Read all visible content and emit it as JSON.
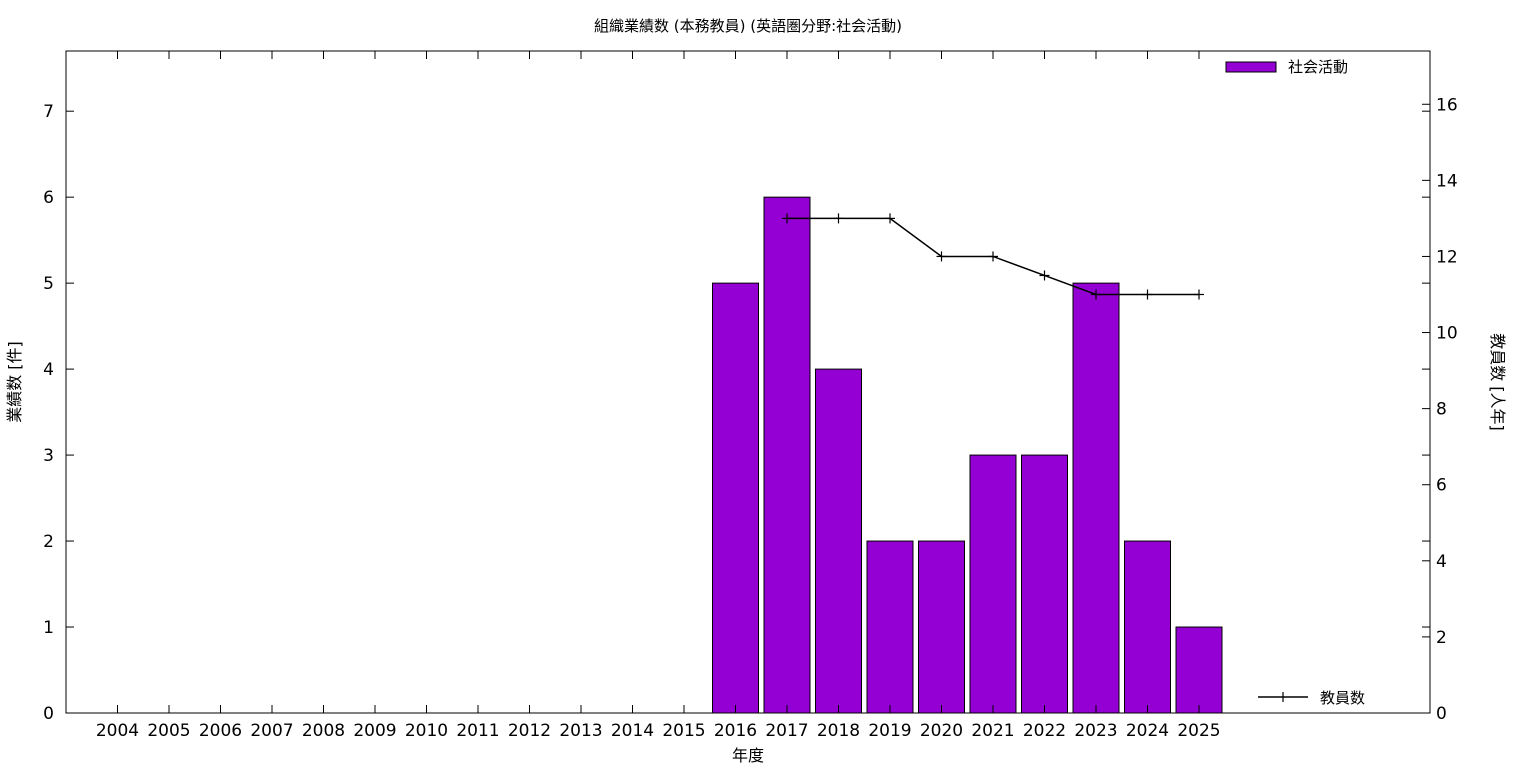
{
  "chart_data": {
    "type": "bar",
    "title": "組織業績数 (本務教員) (英語圏分野:社会活動)",
    "xlabel": "年度",
    "ylabel": "業績数 [件]",
    "y2label": "教員数 [人年]",
    "categories": [
      "2004",
      "2005",
      "2006",
      "2007",
      "2008",
      "2009",
      "2010",
      "2011",
      "2012",
      "2013",
      "2014",
      "2015",
      "2016",
      "2017",
      "2018",
      "2019",
      "2020",
      "2021",
      "2022",
      "2023",
      "2024",
      "2025"
    ],
    "series": [
      {
        "name": "社会活動",
        "type": "bar",
        "axis": "left",
        "color": "#9400d3",
        "values": [
          null,
          null,
          null,
          null,
          null,
          null,
          null,
          null,
          null,
          null,
          null,
          null,
          5,
          6,
          4,
          2,
          2,
          3,
          3,
          5,
          2,
          1
        ]
      },
      {
        "name": "教員数",
        "type": "line",
        "axis": "right",
        "color": "#000000",
        "values": [
          null,
          null,
          null,
          null,
          null,
          null,
          null,
          null,
          null,
          null,
          null,
          null,
          null,
          13,
          13,
          13,
          12,
          12,
          11.5,
          11,
          11,
          11
        ]
      }
    ],
    "ylim": [
      0,
      7.7
    ],
    "y2lim": [
      0,
      17.4
    ],
    "yticks": [
      0,
      1,
      2,
      3,
      4,
      5,
      6,
      7
    ],
    "y2ticks": [
      0,
      2,
      4,
      6,
      8,
      10,
      12,
      14,
      16
    ],
    "legend_bar_position": "top-right",
    "legend_line_position": "bottom-right",
    "grid": false
  }
}
